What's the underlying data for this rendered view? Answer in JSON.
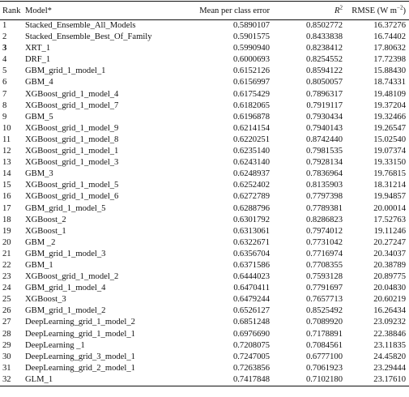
{
  "headers": {
    "rank": "Rank",
    "model": "Model*",
    "mean_error": "Mean per class error",
    "r2_symbol": "R",
    "r2_exp": "2",
    "rmse_prefix": "RMSE (W m",
    "rmse_exp": "−2",
    "rmse_suffix": ")"
  },
  "rows": [
    {
      "rank": "1",
      "model": "Stacked_Ensemble_All_Models",
      "mpce": "0.5890107",
      "r2": "0.8502772",
      "rmse": "16.37276",
      "bold_rank": false
    },
    {
      "rank": "2",
      "model": "Stacked_Ensemble_Best_Of_Family",
      "mpce": "0.5901575",
      "r2": "0.8433838",
      "rmse": "16.74402",
      "bold_rank": false
    },
    {
      "rank": "3",
      "model": "XRT_1",
      "mpce": "0.5990940",
      "r2": "0.8238412",
      "rmse": "17.80632",
      "bold_rank": true
    },
    {
      "rank": "4",
      "model": "DRF_1",
      "mpce": "0.6000693",
      "r2": "0.8254552",
      "rmse": "17.72398",
      "bold_rank": false
    },
    {
      "rank": "5",
      "model": "GBM_grid_1_model_1",
      "mpce": "0.6152126",
      "r2": "0.8594122",
      "rmse": "15.88430",
      "bold_rank": false
    },
    {
      "rank": "6",
      "model": "GBM_4",
      "mpce": "0.6156997",
      "r2": "0.8050057",
      "rmse": "18.74331",
      "bold_rank": false
    },
    {
      "rank": "7",
      "model": "XGBoost_grid_1_model_4",
      "mpce": "0.6175429",
      "r2": "0.7896317",
      "rmse": "19.48109",
      "bold_rank": false
    },
    {
      "rank": "8",
      "model": "XGBoost_grid_1_model_7",
      "mpce": "0.6182065",
      "r2": "0.7919117",
      "rmse": "19.37204",
      "bold_rank": false
    },
    {
      "rank": "9",
      "model": "GBM_5",
      "mpce": "0.6196878",
      "r2": "0.7930434",
      "rmse": "19.32466",
      "bold_rank": false
    },
    {
      "rank": "10",
      "model": "XGBoost_grid_1_model_9",
      "mpce": "0.6214154",
      "r2": "0.7940143",
      "rmse": "19.26547",
      "bold_rank": false
    },
    {
      "rank": "11",
      "model": "XGBoost_grid_1_model_8",
      "mpce": "0.6220251",
      "r2": "0.8742440",
      "rmse": "15.02540",
      "bold_rank": false
    },
    {
      "rank": "12",
      "model": "XGBoost_grid_1_model_1",
      "mpce": "0.6235140",
      "r2": "0.7981535",
      "rmse": "19.07374",
      "bold_rank": false
    },
    {
      "rank": "13",
      "model": "XGBoost_grid_1_model_3",
      "mpce": "0.6243140",
      "r2": "0.7928134",
      "rmse": "19.33150",
      "bold_rank": false
    },
    {
      "rank": "14",
      "model": "GBM_3",
      "mpce": "0.6248937",
      "r2": "0.7836964",
      "rmse": "19.76815",
      "bold_rank": false
    },
    {
      "rank": "15",
      "model": "XGBoost_grid_1_model_5",
      "mpce": "0.6252402",
      "r2": "0.8135903",
      "rmse": "18.31214",
      "bold_rank": false
    },
    {
      "rank": "16",
      "model": "XGBoost_grid_1_model_6",
      "mpce": "0.6272789",
      "r2": "0.7797398",
      "rmse": "19.94857",
      "bold_rank": false
    },
    {
      "rank": "17",
      "model": "GBM_grid_1_model_5",
      "mpce": "0.6288796",
      "r2": "0.7789381",
      "rmse": "20.00014",
      "bold_rank": false
    },
    {
      "rank": "18",
      "model": "XGBoost_2",
      "mpce": "0.6301792",
      "r2": "0.8286823",
      "rmse": "17.52763",
      "bold_rank": false
    },
    {
      "rank": "19",
      "model": "XGBoost_1",
      "mpce": "0.6313061",
      "r2": "0.7974012",
      "rmse": "19.11246",
      "bold_rank": false
    },
    {
      "rank": "20",
      "model": "GBM _2",
      "mpce": "0.6322671",
      "r2": "0.7731042",
      "rmse": "20.27247",
      "bold_rank": false
    },
    {
      "rank": "21",
      "model": "GBM_grid_1_model_3",
      "mpce": "0.6356704",
      "r2": "0.7716974",
      "rmse": "20.34037",
      "bold_rank": false
    },
    {
      "rank": "22",
      "model": "GBM_1",
      "mpce": "0.6371586",
      "r2": "0.7708355",
      "rmse": "20.38789",
      "bold_rank": false
    },
    {
      "rank": "23",
      "model": "XGBoost_grid_1_model_2",
      "mpce": "0.6444023",
      "r2": "0.7593128",
      "rmse": "20.89775",
      "bold_rank": false
    },
    {
      "rank": "24",
      "model": "GBM_grid_1_model_4",
      "mpce": "0.6470411",
      "r2": "0.7791697",
      "rmse": "20.04830",
      "bold_rank": false
    },
    {
      "rank": "25",
      "model": "XGBoost_3",
      "mpce": "0.6479244",
      "r2": "0.7657713",
      "rmse": "20.60219",
      "bold_rank": false
    },
    {
      "rank": "26",
      "model": "GBM_grid_1_model_2",
      "mpce": "0.6526127",
      "r2": "0.8525492",
      "rmse": "16.26434",
      "bold_rank": false
    },
    {
      "rank": "27",
      "model": "DeepLearning_grid_1_model_2",
      "mpce": "0.6851248",
      "r2": "0.7089920",
      "rmse": "23.09232",
      "bold_rank": false
    },
    {
      "rank": "28",
      "model": "DeepLearning_grid_1_model_1",
      "mpce": "0.6976690",
      "r2": "0.7178891",
      "rmse": "22.38846",
      "bold_rank": false
    },
    {
      "rank": "29",
      "model": "DeepLearning _1",
      "mpce": "0.7208075",
      "r2": "0.7084561",
      "rmse": "23.11835",
      "bold_rank": false
    },
    {
      "rank": "30",
      "model": "DeepLearning_grid_3_model_1",
      "mpce": "0.7247005",
      "r2": "0.6777100",
      "rmse": "24.45820",
      "bold_rank": false
    },
    {
      "rank": "31",
      "model": "DeepLearning_grid_2_model_1",
      "mpce": "0.7263856",
      "r2": "0.7061923",
      "rmse": "23.29444",
      "bold_rank": false
    },
    {
      "rank": "32",
      "model": "GLM_1",
      "mpce": "0.7417848",
      "r2": "0.7102180",
      "rmse": "23.17610",
      "bold_rank": false
    }
  ]
}
